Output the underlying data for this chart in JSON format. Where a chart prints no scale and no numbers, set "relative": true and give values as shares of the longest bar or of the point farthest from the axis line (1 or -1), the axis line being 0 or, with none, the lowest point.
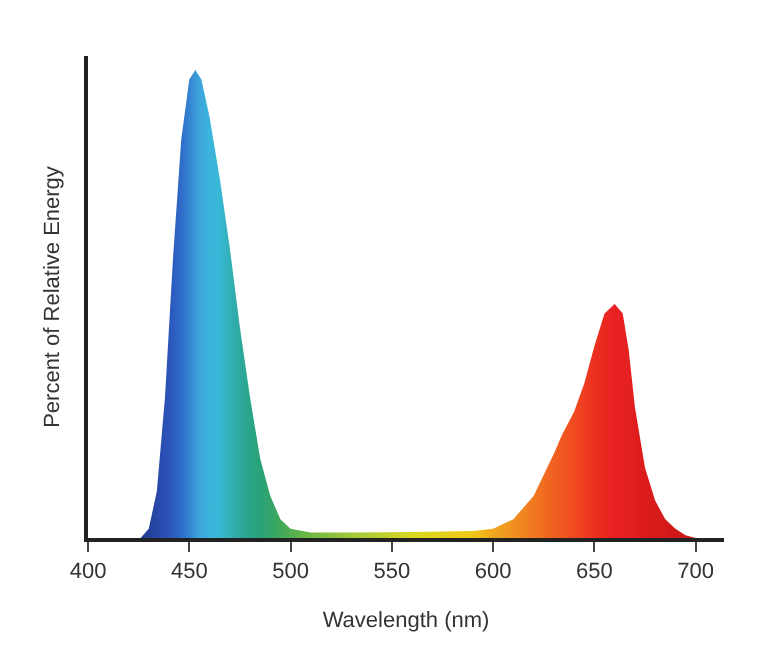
{
  "chart_data": {
    "type": "area",
    "relative": true,
    "xlabel": "Wavelength (nm)",
    "ylabel": "Percent of Relative Energy",
    "xlim": [
      400,
      714
    ],
    "xticks": [
      400,
      450,
      500,
      550,
      600,
      650,
      700
    ],
    "legend": false,
    "x": [
      426,
      430,
      434,
      438,
      442,
      446,
      450,
      453,
      456,
      460,
      465,
      470,
      475,
      480,
      485,
      490,
      495,
      500,
      510,
      530,
      560,
      590,
      600,
      610,
      620,
      630,
      634,
      640,
      645,
      650,
      655,
      660,
      664,
      667,
      670,
      675,
      680,
      685,
      690,
      695,
      700
    ],
    "values": [
      0,
      0.02,
      0.1,
      0.3,
      0.6,
      0.85,
      0.98,
      1.0,
      0.98,
      0.9,
      0.77,
      0.62,
      0.45,
      0.3,
      0.17,
      0.09,
      0.04,
      0.02,
      0.012,
      0.012,
      0.013,
      0.015,
      0.02,
      0.04,
      0.09,
      0.18,
      0.22,
      0.27,
      0.33,
      0.41,
      0.48,
      0.5,
      0.48,
      0.4,
      0.28,
      0.15,
      0.08,
      0.04,
      0.02,
      0.006,
      0
    ],
    "colors": [
      "#233c8f",
      "#25409a",
      "#2848a8",
      "#2a50b4",
      "#2c5cc0",
      "#306cc8",
      "#3484d0",
      "#3a98d8",
      "#3ca8dc",
      "#3cb4dc",
      "#38b8d4",
      "#32b0b8",
      "#2ea8a0",
      "#2aa488",
      "#2aa278",
      "#32a46a",
      "#40a85c",
      "#52ae50",
      "#70b844",
      "#a0c83a",
      "#d8d820",
      "#f0c818",
      "#f0a820",
      "#f09020",
      "#f07820",
      "#f06020",
      "#f05820",
      "#f04a20",
      "#ee3c20",
      "#ec3020",
      "#ea2820",
      "#e82222",
      "#e62020",
      "#e42020",
      "#e01c1c",
      "#dc1c1c",
      "#d81a1a",
      "#d41a1a",
      "#d01818",
      "#cc1818",
      "#c81818"
    ]
  }
}
